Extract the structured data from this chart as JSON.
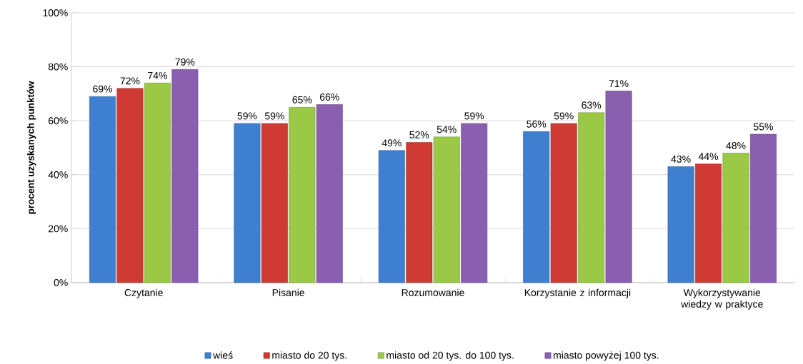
{
  "chart_data": {
    "type": "bar",
    "ylabel": "procent uzyskanych punktów",
    "categories": [
      "Czytanie",
      "Pisanie",
      "Rozumowanie",
      "Korzystanie z informacji",
      "Wykorzystywanie wiedzy w praktyce"
    ],
    "series": [
      {
        "name": "wieś",
        "color": "#3f7fd0",
        "values": [
          69,
          59,
          49,
          56,
          43
        ],
        "value_labels": [
          "69%",
          "59%",
          "49%",
          "56%",
          "43%"
        ]
      },
      {
        "name": "miasto do 20 tys.",
        "color": "#d03a35",
        "values": [
          72,
          59,
          52,
          59,
          44
        ],
        "value_labels": [
          "72%",
          "59%",
          "52%",
          "59%",
          "44%"
        ]
      },
      {
        "name": "miasto od 20 tys. do 100 tys.",
        "color": "#9bc945",
        "values": [
          74,
          65,
          54,
          63,
          48
        ],
        "value_labels": [
          "74%",
          "65%",
          "54%",
          "63%",
          "48%"
        ]
      },
      {
        "name": "miasto powyżej 100 tys.",
        "color": "#8a5fb0",
        "values": [
          79,
          66,
          59,
          71,
          55
        ],
        "value_labels": [
          "79%",
          "66%",
          "59%",
          "71%",
          "55%"
        ]
      }
    ],
    "ylim": [
      0,
      100
    ],
    "yticks": [
      {
        "value": 0,
        "label": "0%"
      },
      {
        "value": 20,
        "label": "20%"
      },
      {
        "value": 40,
        "label": "40%"
      },
      {
        "value": 60,
        "label": "60%"
      },
      {
        "value": 80,
        "label": "80%"
      },
      {
        "value": 100,
        "label": "100%"
      }
    ],
    "grid": "y",
    "legend": "bottom"
  }
}
